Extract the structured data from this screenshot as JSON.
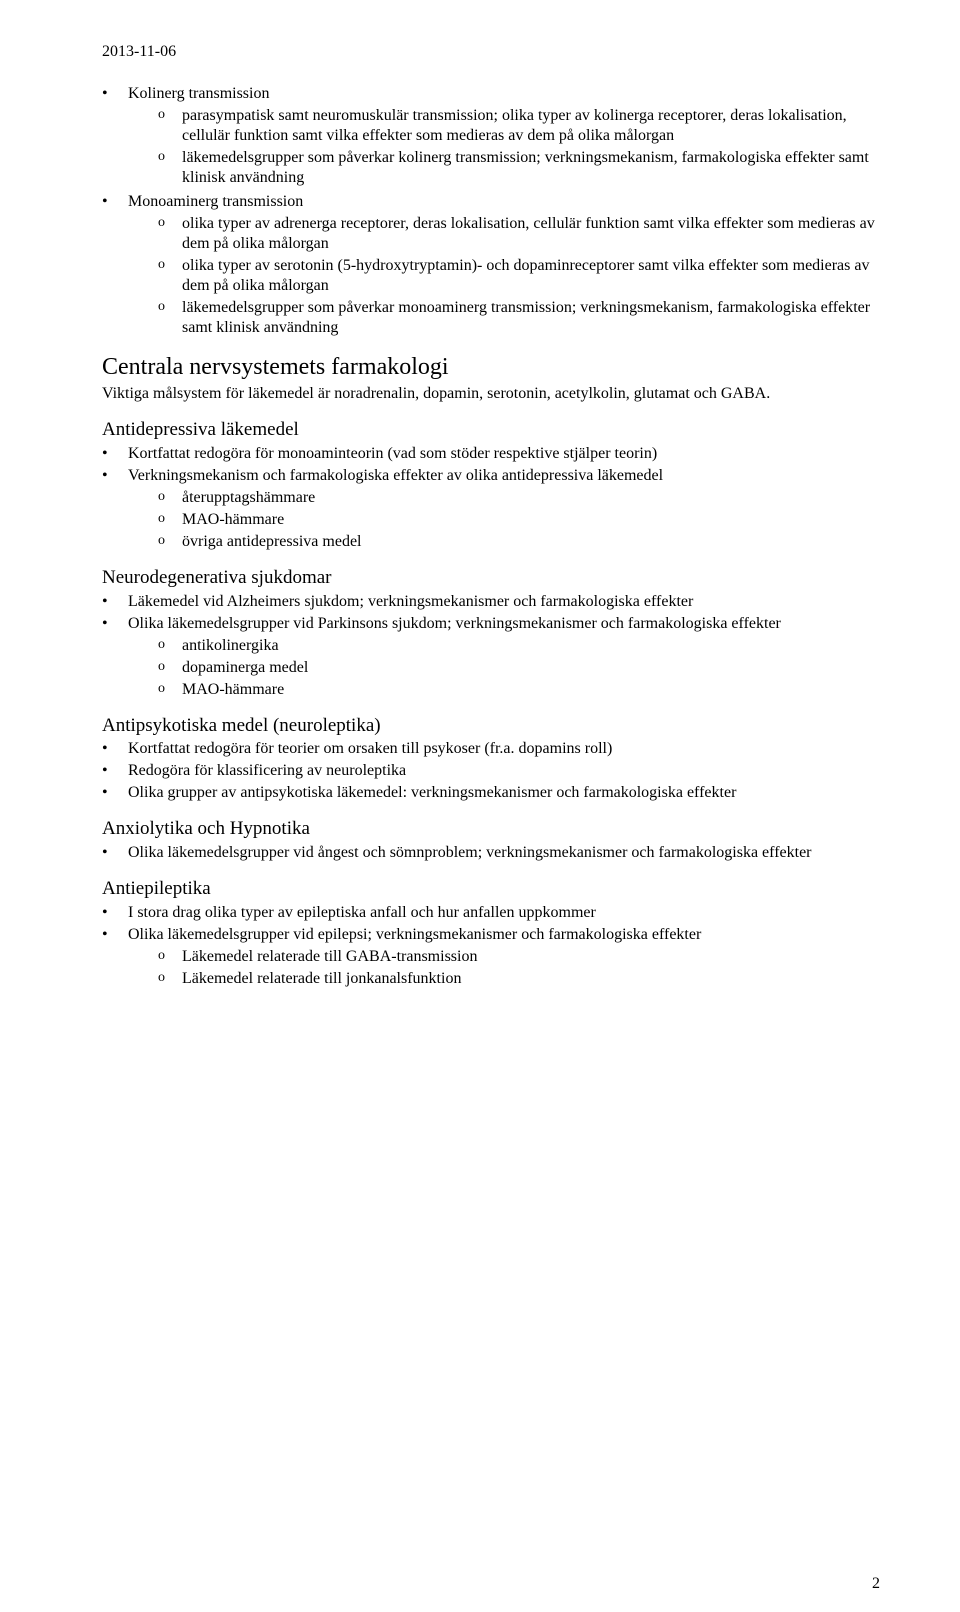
{
  "date": "2013-11-06",
  "page_number": "2",
  "block1": {
    "i0": {
      "title": "Kolinerg transmission",
      "s0": "parasympatisk samt neuromuskulär transmission; olika typer av kolinerga receptorer, deras lokalisation, cellulär funktion samt vilka effekter som medieras av dem på olika målorgan",
      "s1": "läkemedelsgrupper som påverkar kolinerg transmission; verkningsmekanism, farmakologiska effekter samt klinisk användning"
    },
    "i1": {
      "title": "Monoaminerg transmission",
      "s0": "olika typer av adrenerga receptorer, deras lokalisation, cellulär funktion samt vilka effekter som medieras av dem på olika målorgan",
      "s1": "olika typer av serotonin (5-hydroxytryptamin)- och dopaminreceptorer samt vilka effekter som medieras av dem på olika målorgan",
      "s2": "läkemedelsgrupper som påverkar monoaminerg transmission; verkningsmekanism, farmakologiska effekter samt klinisk användning"
    }
  },
  "h2_1": "Centrala nervsystemets farmakologi",
  "p_lead": "Viktiga målsystem för läkemedel är noradrenalin, dopamin, serotonin, acetylkolin, glutamat och GABA.",
  "sec_antidep": {
    "heading": "Antidepressiva läkemedel",
    "b0": "Kortfattat redogöra för monoaminteorin (vad som stöder respektive stjälper teorin)",
    "b1": "Verkningsmekanism och farmakologiska effekter av olika antidepressiva läkemedel",
    "s0": "återupptagshämmare",
    "s1": "MAO-hämmare",
    "s2": "övriga antidepressiva medel"
  },
  "sec_neuro": {
    "heading": "Neurodegenerativa sjukdomar",
    "b0": "Läkemedel vid Alzheimers sjukdom; verkningsmekanismer och farmakologiska effekter",
    "b1": "Olika läkemedelsgrupper vid Parkinsons sjukdom; verkningsmekanismer och farmakologiska effekter",
    "s0": "antikolinergika",
    "s1": "dopaminerga medel",
    "s2": "MAO-hämmare"
  },
  "sec_antipsy": {
    "heading": "Antipsykotiska medel (neuroleptika)",
    "b0": "Kortfattat redogöra för teorier om orsaken till psykoser (fr.a. dopamins roll)",
    "b1": "Redogöra för klassificering av neuroleptika",
    "b2": "Olika grupper av antipsykotiska läkemedel: verkningsmekanismer och farmakologiska effekter"
  },
  "sec_anx": {
    "heading": "Anxiolytika och Hypnotika",
    "b0": "Olika läkemedelsgrupper vid ångest och sömnproblem; verkningsmekanismer och farmakologiska effekter"
  },
  "sec_epi": {
    "heading": "Antiepileptika",
    "b0": "I stora drag olika typer av epileptiska anfall och hur anfallen uppkommer",
    "b1": "Olika läkemedelsgrupper vid epilepsi; verkningsmekanismer och farmakologiska effekter",
    "s0": "Läkemedel relaterade till GABA-transmission",
    "s1": "Läkemedel relaterade till jonkanalsfunktion"
  }
}
